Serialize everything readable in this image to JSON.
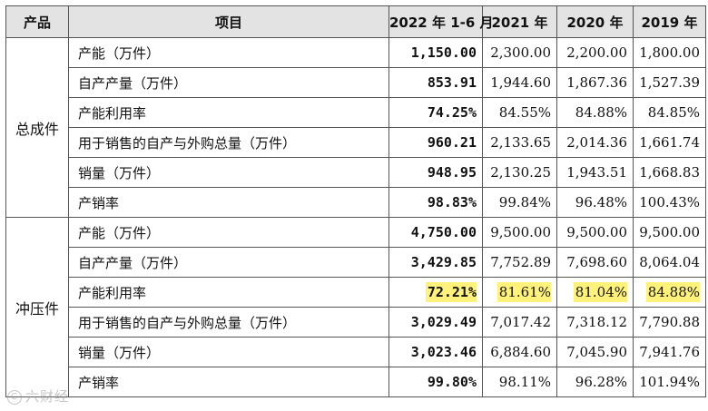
{
  "header": {
    "product": "产品",
    "item": "项目",
    "y2022": "2022 年 1-6 月",
    "y2021": "2021 年",
    "y2020": "2020 年",
    "y2019": "2019 年"
  },
  "groups": [
    {
      "name": "总成件",
      "rows": [
        {
          "item": "产能（万件）",
          "v2022": "1,150.00",
          "v2021": "2,300.00",
          "v2020": "2,200.00",
          "v2019": "1,800.00"
        },
        {
          "item": "自产产量（万件）",
          "v2022": "853.91",
          "v2021": "1,944.60",
          "v2020": "1,867.36",
          "v2019": "1,527.39"
        },
        {
          "item": "产能利用率",
          "v2022": "74.25%",
          "v2021": "84.55%",
          "v2020": "84.88%",
          "v2019": "84.85%"
        },
        {
          "item": "用于销售的自产与外购总量（万件）",
          "v2022": "960.21",
          "v2021": "2,133.65",
          "v2020": "2,014.36",
          "v2019": "1,661.74"
        },
        {
          "item": "销量（万件）",
          "v2022": "948.95",
          "v2021": "2,130.25",
          "v2020": "1,943.51",
          "v2019": "1,668.83"
        },
        {
          "item": "产销率",
          "v2022": "98.83%",
          "v2021": "99.84%",
          "v2020": "96.48%",
          "v2019": "100.43%"
        }
      ]
    },
    {
      "name": "冲压件",
      "rows": [
        {
          "item": "产能（万件）",
          "v2022": "4,750.00",
          "v2021": "9,500.00",
          "v2020": "9,500.00",
          "v2019": "9,500.00"
        },
        {
          "item": "自产产量（万件）",
          "v2022": "3,429.85",
          "v2021": "7,752.89",
          "v2020": "7,698.60",
          "v2019": "8,064.04"
        },
        {
          "item": "产能利用率",
          "v2022": "72.21%",
          "v2021": "81.61%",
          "v2020": "81.04%",
          "v2019": "84.88%"
        },
        {
          "item": "用于销售的自产与外购总量（万件）",
          "v2022": "3,029.49",
          "v2021": "7,017.42",
          "v2020": "7,318.12",
          "v2019": "7,790.88"
        },
        {
          "item": "销量（万件）",
          "v2022": "3,023.46",
          "v2021": "6,884.60",
          "v2020": "7,045.90",
          "v2019": "7,941.76"
        },
        {
          "item": "产销率",
          "v2022": "99.80%",
          "v2021": "98.11%",
          "v2020": "96.28%",
          "v2019": "101.94%"
        }
      ]
    }
  ],
  "highlight_color": "#fff27a",
  "watermark": {
    "text": "六财经",
    "icon": "watermark-logo-icon"
  }
}
